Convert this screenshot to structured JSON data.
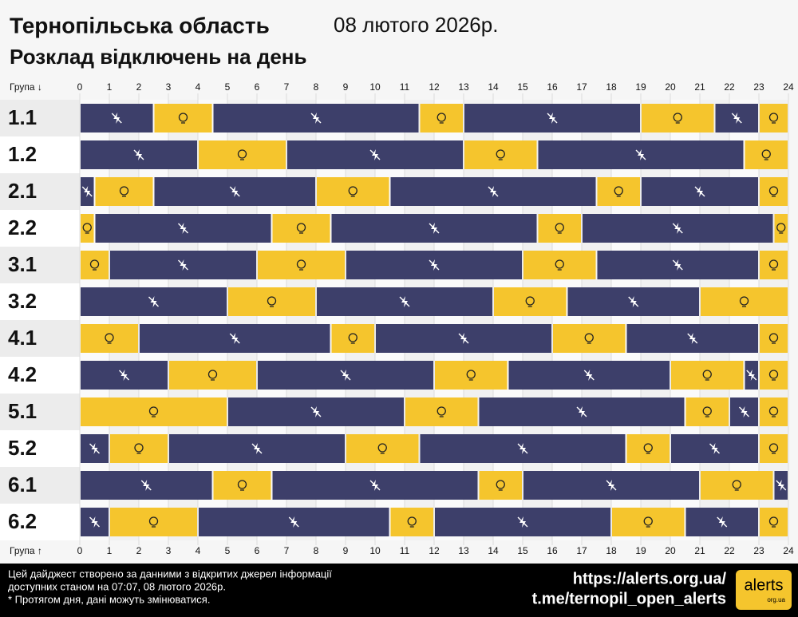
{
  "chart_data": {
    "type": "timeline",
    "title": "Тернопільська область",
    "date": "08 лютого 2026р.",
    "subtitle": "Розклад відключень на день",
    "axis_label_top": "Група ↓",
    "axis_label_bottom": "Група ↑",
    "xlim": [
      0,
      24
    ],
    "xticks": [
      0,
      1,
      2,
      3,
      4,
      5,
      6,
      7,
      8,
      9,
      10,
      11,
      12,
      13,
      14,
      15,
      16,
      17,
      18,
      19,
      20,
      21,
      22,
      23,
      24
    ],
    "off_color": "#3d3f6a",
    "on_color": "#f5c52d",
    "rows": [
      {
        "name": "1.1",
        "segments": [
          {
            "start": 0,
            "end": 2.5,
            "power": false
          },
          {
            "start": 2.5,
            "end": 4.5,
            "power": true
          },
          {
            "start": 4.5,
            "end": 11.5,
            "power": false
          },
          {
            "start": 11.5,
            "end": 13,
            "power": true
          },
          {
            "start": 13,
            "end": 19,
            "power": false
          },
          {
            "start": 19,
            "end": 21.5,
            "power": true
          },
          {
            "start": 21.5,
            "end": 23,
            "power": false
          },
          {
            "start": 23,
            "end": 24,
            "power": true
          }
        ]
      },
      {
        "name": "1.2",
        "segments": [
          {
            "start": 0,
            "end": 4,
            "power": false
          },
          {
            "start": 4,
            "end": 7,
            "power": true
          },
          {
            "start": 7,
            "end": 13,
            "power": false
          },
          {
            "start": 13,
            "end": 15.5,
            "power": true
          },
          {
            "start": 15.5,
            "end": 22.5,
            "power": false
          },
          {
            "start": 22.5,
            "end": 24,
            "power": true
          }
        ]
      },
      {
        "name": "2.1",
        "segments": [
          {
            "start": 0,
            "end": 0.5,
            "power": false
          },
          {
            "start": 0.5,
            "end": 2.5,
            "power": true
          },
          {
            "start": 2.5,
            "end": 8,
            "power": false
          },
          {
            "start": 8,
            "end": 10.5,
            "power": true
          },
          {
            "start": 10.5,
            "end": 17.5,
            "power": false
          },
          {
            "start": 17.5,
            "end": 19,
            "power": true
          },
          {
            "start": 19,
            "end": 23,
            "power": false
          },
          {
            "start": 23,
            "end": 24,
            "power": true
          }
        ]
      },
      {
        "name": "2.2",
        "segments": [
          {
            "start": 0,
            "end": 0.5,
            "power": true
          },
          {
            "start": 0.5,
            "end": 6.5,
            "power": false
          },
          {
            "start": 6.5,
            "end": 8.5,
            "power": true
          },
          {
            "start": 8.5,
            "end": 15.5,
            "power": false
          },
          {
            "start": 15.5,
            "end": 17,
            "power": true
          },
          {
            "start": 17,
            "end": 23.5,
            "power": false
          },
          {
            "start": 23.5,
            "end": 24,
            "power": true
          }
        ]
      },
      {
        "name": "3.1",
        "segments": [
          {
            "start": 0,
            "end": 1,
            "power": true
          },
          {
            "start": 1,
            "end": 6,
            "power": false
          },
          {
            "start": 6,
            "end": 9,
            "power": true
          },
          {
            "start": 9,
            "end": 15,
            "power": false
          },
          {
            "start": 15,
            "end": 17.5,
            "power": true
          },
          {
            "start": 17.5,
            "end": 23,
            "power": false
          },
          {
            "start": 23,
            "end": 24,
            "power": true
          }
        ]
      },
      {
        "name": "3.2",
        "segments": [
          {
            "start": 0,
            "end": 5,
            "power": false
          },
          {
            "start": 5,
            "end": 8,
            "power": true
          },
          {
            "start": 8,
            "end": 14,
            "power": false
          },
          {
            "start": 14,
            "end": 16.5,
            "power": true
          },
          {
            "start": 16.5,
            "end": 21,
            "power": false
          },
          {
            "start": 21,
            "end": 24,
            "power": true
          }
        ]
      },
      {
        "name": "4.1",
        "segments": [
          {
            "start": 0,
            "end": 2,
            "power": true
          },
          {
            "start": 2,
            "end": 8.5,
            "power": false
          },
          {
            "start": 8.5,
            "end": 10,
            "power": true
          },
          {
            "start": 10,
            "end": 16,
            "power": false
          },
          {
            "start": 16,
            "end": 18.5,
            "power": true
          },
          {
            "start": 18.5,
            "end": 23,
            "power": false
          },
          {
            "start": 23,
            "end": 24,
            "power": true
          }
        ]
      },
      {
        "name": "4.2",
        "segments": [
          {
            "start": 0,
            "end": 3,
            "power": false
          },
          {
            "start": 3,
            "end": 6,
            "power": true
          },
          {
            "start": 6,
            "end": 12,
            "power": false
          },
          {
            "start": 12,
            "end": 14.5,
            "power": true
          },
          {
            "start": 14.5,
            "end": 20,
            "power": false
          },
          {
            "start": 20,
            "end": 22.5,
            "power": true
          },
          {
            "start": 22.5,
            "end": 23,
            "power": false
          },
          {
            "start": 23,
            "end": 24,
            "power": true
          }
        ]
      },
      {
        "name": "5.1",
        "segments": [
          {
            "start": 0,
            "end": 5,
            "power": true
          },
          {
            "start": 5,
            "end": 11,
            "power": false
          },
          {
            "start": 11,
            "end": 13.5,
            "power": true
          },
          {
            "start": 13.5,
            "end": 20.5,
            "power": false
          },
          {
            "start": 20.5,
            "end": 22,
            "power": true
          },
          {
            "start": 22,
            "end": 23,
            "power": false
          },
          {
            "start": 23,
            "end": 24,
            "power": true
          }
        ]
      },
      {
        "name": "5.2",
        "segments": [
          {
            "start": 0,
            "end": 1,
            "power": false
          },
          {
            "start": 1,
            "end": 3,
            "power": true
          },
          {
            "start": 3,
            "end": 9,
            "power": false
          },
          {
            "start": 9,
            "end": 11.5,
            "power": true
          },
          {
            "start": 11.5,
            "end": 18.5,
            "power": false
          },
          {
            "start": 18.5,
            "end": 20,
            "power": true
          },
          {
            "start": 20,
            "end": 23,
            "power": false
          },
          {
            "start": 23,
            "end": 24,
            "power": true
          }
        ]
      },
      {
        "name": "6.1",
        "segments": [
          {
            "start": 0,
            "end": 4.5,
            "power": false
          },
          {
            "start": 4.5,
            "end": 6.5,
            "power": true
          },
          {
            "start": 6.5,
            "end": 13.5,
            "power": false
          },
          {
            "start": 13.5,
            "end": 15,
            "power": true
          },
          {
            "start": 15,
            "end": 21,
            "power": false
          },
          {
            "start": 21,
            "end": 23.5,
            "power": true
          },
          {
            "start": 23.5,
            "end": 24,
            "power": false
          }
        ]
      },
      {
        "name": "6.2",
        "segments": [
          {
            "start": 0,
            "end": 1,
            "power": false
          },
          {
            "start": 1,
            "end": 4,
            "power": true
          },
          {
            "start": 4,
            "end": 10.5,
            "power": false
          },
          {
            "start": 10.5,
            "end": 12,
            "power": true
          },
          {
            "start": 12,
            "end": 18,
            "power": false
          },
          {
            "start": 18,
            "end": 20.5,
            "power": true
          },
          {
            "start": 20.5,
            "end": 23,
            "power": false
          },
          {
            "start": 23,
            "end": 24,
            "power": true
          }
        ]
      }
    ],
    "footer": [
      "Цей дайджест створено за данними з відкритих джерел інформації",
      "доступних станом на 07:07, 08 лютого 2026р.",
      "* Протягом дня, дані можуть змінюватися."
    ],
    "links": [
      "https://alerts.org.ua/",
      "t.me/ternopil_open_alerts"
    ],
    "logo": "alerts",
    "logo_sub": "org.ua"
  }
}
